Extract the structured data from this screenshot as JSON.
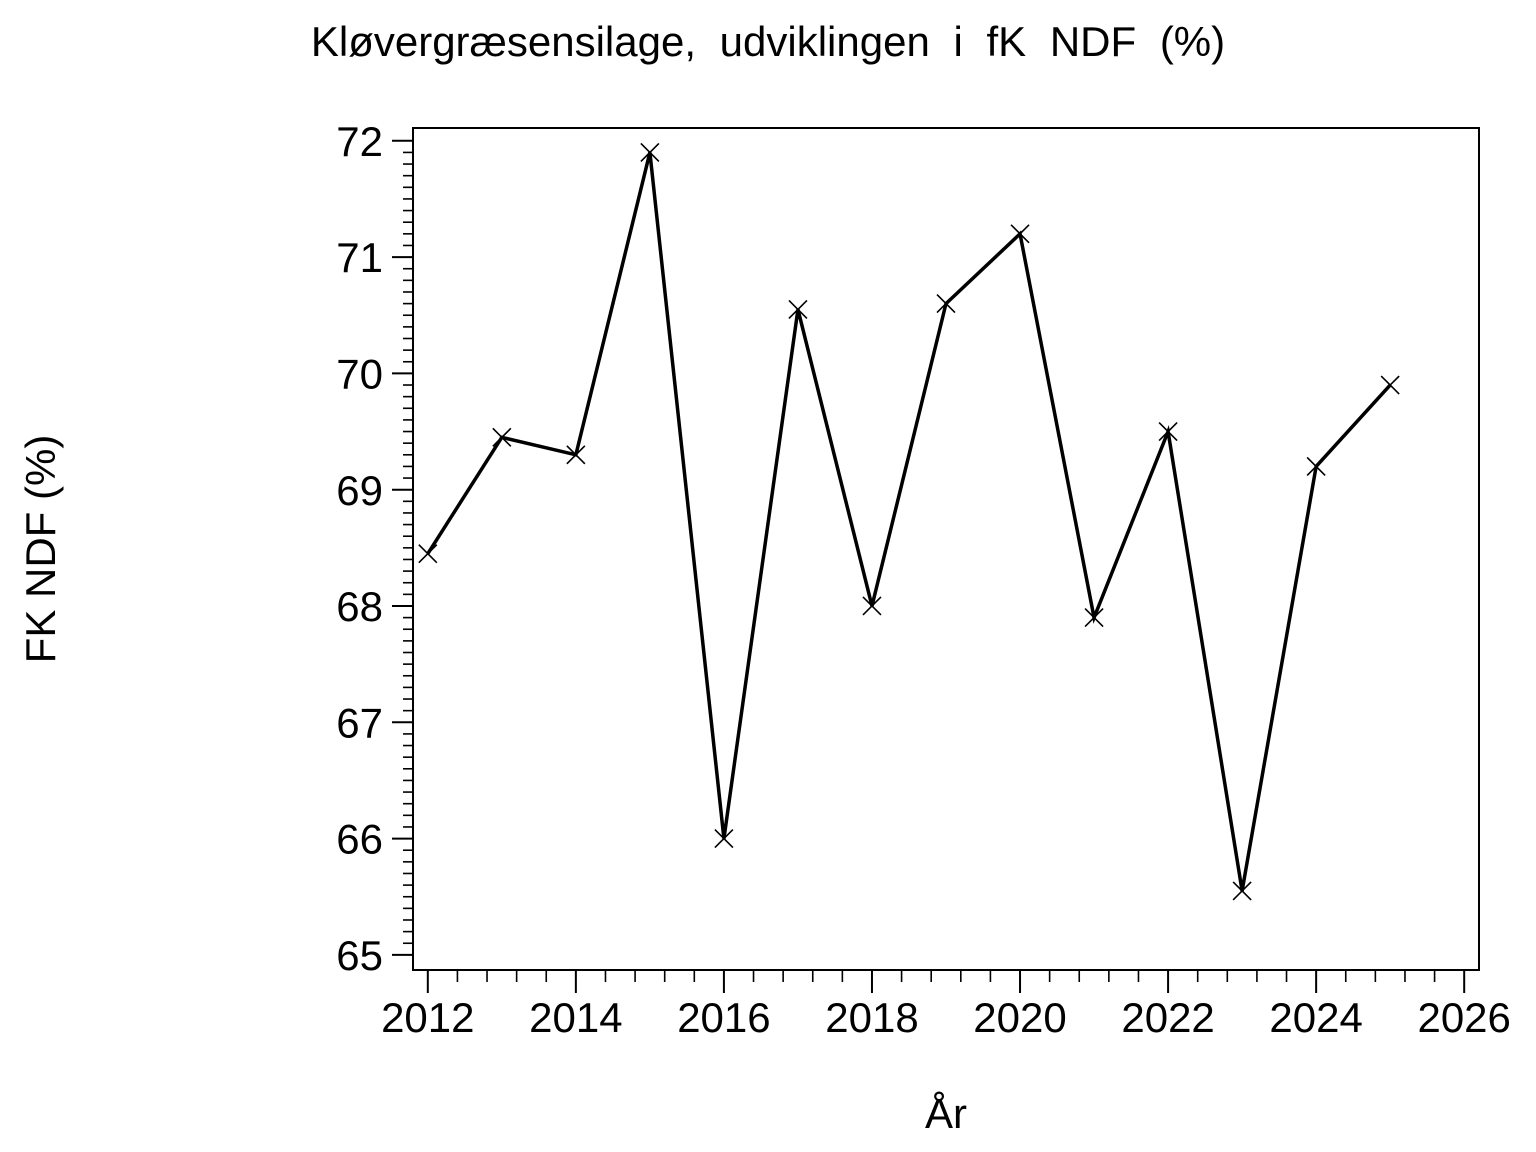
{
  "page": {
    "background_color": "#ffffff",
    "foreground_color": "#000000"
  },
  "chart_data": {
    "type": "line",
    "title": "Kløvergræsensilage, udviklingen i fK NDF (%)",
    "xlabel": "År",
    "ylabel": "FK NDF (%)",
    "series": [
      {
        "name": "fK NDF (%)",
        "x": [
          2012,
          2013,
          2014,
          2015,
          2016,
          2017,
          2018,
          2019,
          2020,
          2021,
          2022,
          2023,
          2024,
          2025
        ],
        "values": [
          68.45,
          69.45,
          69.3,
          71.9,
          66.0,
          70.55,
          68.0,
          70.6,
          71.2,
          67.9,
          69.5,
          65.55,
          69.2,
          69.9
        ]
      }
    ],
    "xlim": [
      2011.8,
      2026.2
    ],
    "ylim": [
      64.87,
      72.11
    ],
    "x_major_ticks": [
      2012,
      2014,
      2016,
      2018,
      2020,
      2022,
      2024,
      2026
    ],
    "x_minor_step": 0.4,
    "y_major_ticks": [
      65,
      66,
      67,
      68,
      69,
      70,
      71,
      72
    ],
    "y_minor_step": 0.1,
    "grid": false,
    "legend": "none",
    "marker": "x",
    "line_color": "#000000",
    "frame": "box"
  }
}
